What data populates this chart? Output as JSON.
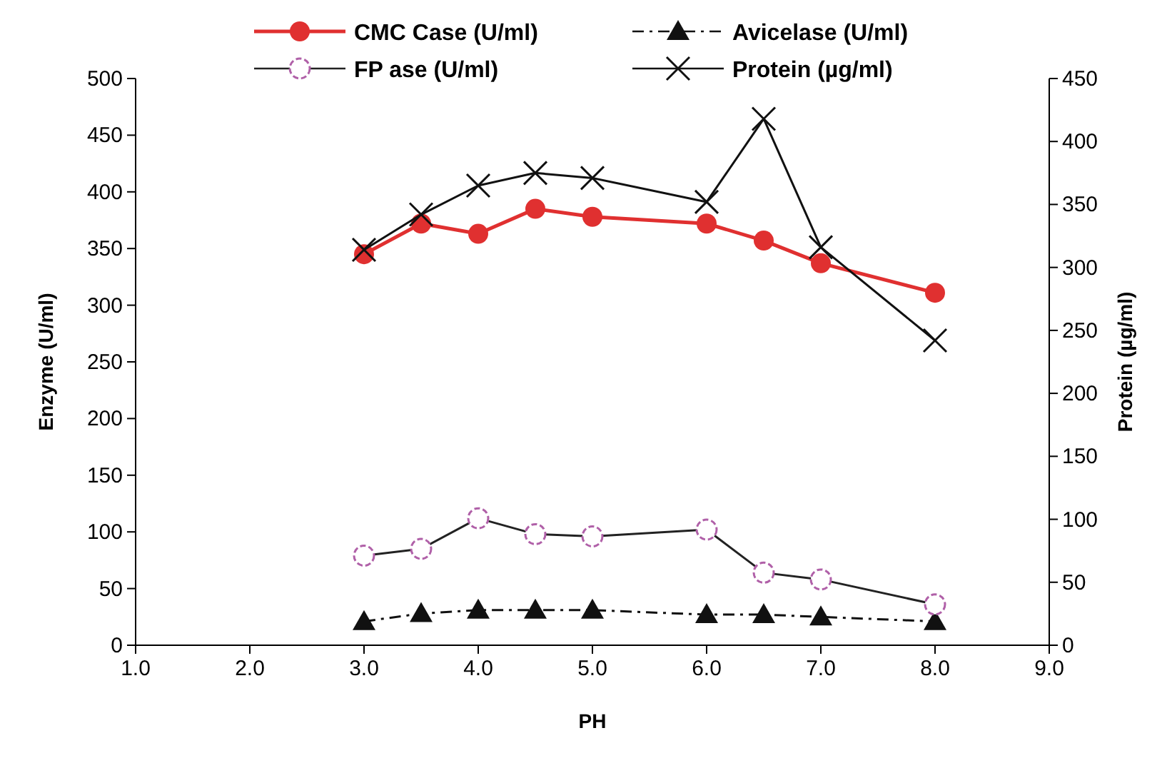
{
  "chart_data": {
    "type": "line",
    "xlabel": "PH",
    "ylabel": "Enzyme (U/ml)",
    "y2label": "Protein (µg/ml)",
    "x": [
      3.0,
      3.5,
      4.0,
      4.5,
      5.0,
      6.0,
      6.5,
      7.0,
      8.0
    ],
    "xlim": [
      1,
      9
    ],
    "xticks": [
      {
        "value": 1,
        "label": "1.0"
      },
      {
        "value": 2,
        "label": "2.0"
      },
      {
        "value": 3,
        "label": "3.0"
      },
      {
        "value": 4,
        "label": "4.0"
      },
      {
        "value": 5,
        "label": "5.0"
      },
      {
        "value": 6,
        "label": "6.0"
      },
      {
        "value": 7,
        "label": "7.0"
      },
      {
        "value": 8,
        "label": "8.0"
      },
      {
        "value": 9,
        "label": "9.0"
      }
    ],
    "ylim": [
      0,
      500
    ],
    "yticks": [
      0,
      50,
      100,
      150,
      200,
      250,
      300,
      350,
      400,
      450,
      500
    ],
    "y2lim": [
      0,
      450
    ],
    "y2ticks": [
      0,
      50,
      100,
      150,
      200,
      250,
      300,
      350,
      400,
      450
    ],
    "grid": false,
    "legend": "top",
    "series": [
      {
        "name": "CMC Case (U/ml)",
        "color": "#e03030",
        "marker": "circle",
        "line_style": "solid",
        "values": [
          345,
          372,
          363,
          385,
          378,
          372,
          357,
          337,
          311
        ]
      },
      {
        "name": "Avicelase (U/ml)",
        "color": "#111111",
        "marker": "triangle",
        "line_style": "dashed",
        "values": [
          21,
          28,
          31,
          31,
          31,
          27,
          27,
          25,
          21
        ]
      },
      {
        "name": "FP ase (U/ml)",
        "color": "#b060a8",
        "marker": "circle",
        "line_style": "solid",
        "values": [
          79,
          85,
          112,
          98,
          96,
          102,
          64,
          58,
          36
        ]
      },
      {
        "name": "Protein (µg/ml)",
        "color": "#111111",
        "marker": "cross",
        "line_style": "solid",
        "axis": "y2",
        "values": [
          314,
          342,
          365,
          375,
          371,
          352,
          418,
          316,
          242
        ]
      }
    ]
  }
}
